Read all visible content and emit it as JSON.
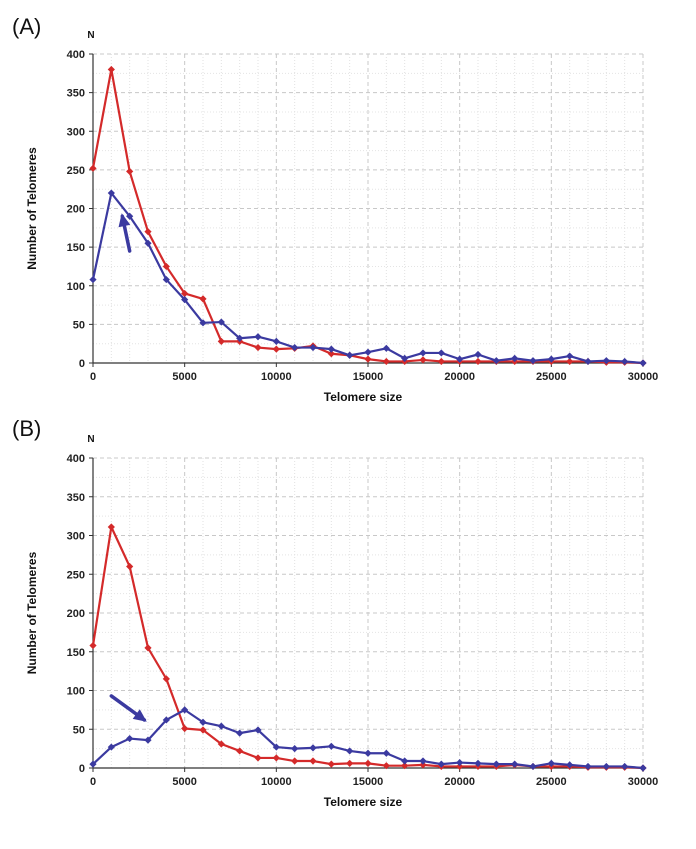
{
  "chart_data": [
    {
      "type": "line",
      "panel_label": "(A)",
      "ylabel": "Number of Telomeres",
      "xlabel": "Telomere size",
      "y_unit": "N",
      "xlim": [
        0,
        30000
      ],
      "ylim": [
        0,
        400
      ],
      "x_ticks": [
        "0",
        "5000",
        "10000",
        "15000",
        "20000",
        "25000",
        "30000"
      ],
      "y_ticks": [
        "0",
        "50",
        "100",
        "150",
        "200",
        "250",
        "300",
        "350",
        "400"
      ],
      "grid": true,
      "arrow": {
        "from": [
          2000,
          145
        ],
        "to": [
          1600,
          190
        ],
        "color": "#3b3aa0"
      },
      "x": [
        0,
        1000,
        2000,
        3000,
        4000,
        5000,
        6000,
        7000,
        8000,
        9000,
        10000,
        11000,
        12000,
        13000,
        14000,
        15000,
        16000,
        17000,
        18000,
        19000,
        20000,
        21000,
        22000,
        23000,
        24000,
        25000,
        26000,
        27000,
        28000,
        29000,
        30000
      ],
      "series": [
        {
          "color": "#d42a2a",
          "values": [
            252,
            380,
            248,
            170,
            125,
            90,
            83,
            28,
            28,
            20,
            18,
            19,
            22,
            12,
            10,
            5,
            2,
            2,
            4,
            2,
            2,
            2,
            2,
            2,
            2,
            2,
            2,
            2,
            1,
            1,
            0
          ]
        },
        {
          "color": "#3b3aa0",
          "values": [
            108,
            220,
            190,
            155,
            108,
            82,
            52,
            53,
            32,
            34,
            28,
            20,
            20,
            18,
            10,
            14,
            19,
            6,
            13,
            13,
            5,
            11,
            3,
            6,
            3,
            5,
            9,
            2,
            3,
            2,
            0
          ]
        }
      ]
    },
    {
      "type": "line",
      "panel_label": "(B)",
      "ylabel": "Number of Telomeres",
      "xlabel": "Telomere size",
      "y_unit": "N",
      "xlim": [
        0,
        30000
      ],
      "ylim": [
        0,
        400
      ],
      "x_ticks": [
        "0",
        "5000",
        "10000",
        "15000",
        "20000",
        "25000",
        "30000"
      ],
      "y_ticks": [
        "0",
        "50",
        "100",
        "150",
        "200",
        "250",
        "300",
        "350",
        "400"
      ],
      "grid": true,
      "arrow": {
        "from": [
          1000,
          93
        ],
        "to": [
          2800,
          62
        ],
        "color": "#3b3aa0"
      },
      "x": [
        0,
        1000,
        2000,
        3000,
        4000,
        5000,
        6000,
        7000,
        8000,
        9000,
        10000,
        11000,
        12000,
        13000,
        14000,
        15000,
        16000,
        17000,
        18000,
        19000,
        20000,
        21000,
        22000,
        23000,
        24000,
        25000,
        26000,
        27000,
        28000,
        29000,
        30000
      ],
      "series": [
        {
          "color": "#d42a2a",
          "values": [
            158,
            311,
            260,
            155,
            115,
            51,
            49,
            31,
            22,
            13,
            13,
            9,
            9,
            5,
            6,
            6,
            3,
            3,
            4,
            2,
            2,
            2,
            2,
            4,
            2,
            2,
            2,
            1,
            1,
            1,
            0
          ]
        },
        {
          "color": "#3b3aa0",
          "values": [
            5,
            27,
            38,
            36,
            62,
            75,
            59,
            54,
            45,
            49,
            27,
            25,
            26,
            28,
            22,
            19,
            19,
            9,
            9,
            5,
            7,
            6,
            5,
            5,
            2,
            6,
            4,
            2,
            2,
            2,
            0
          ]
        }
      ]
    }
  ]
}
